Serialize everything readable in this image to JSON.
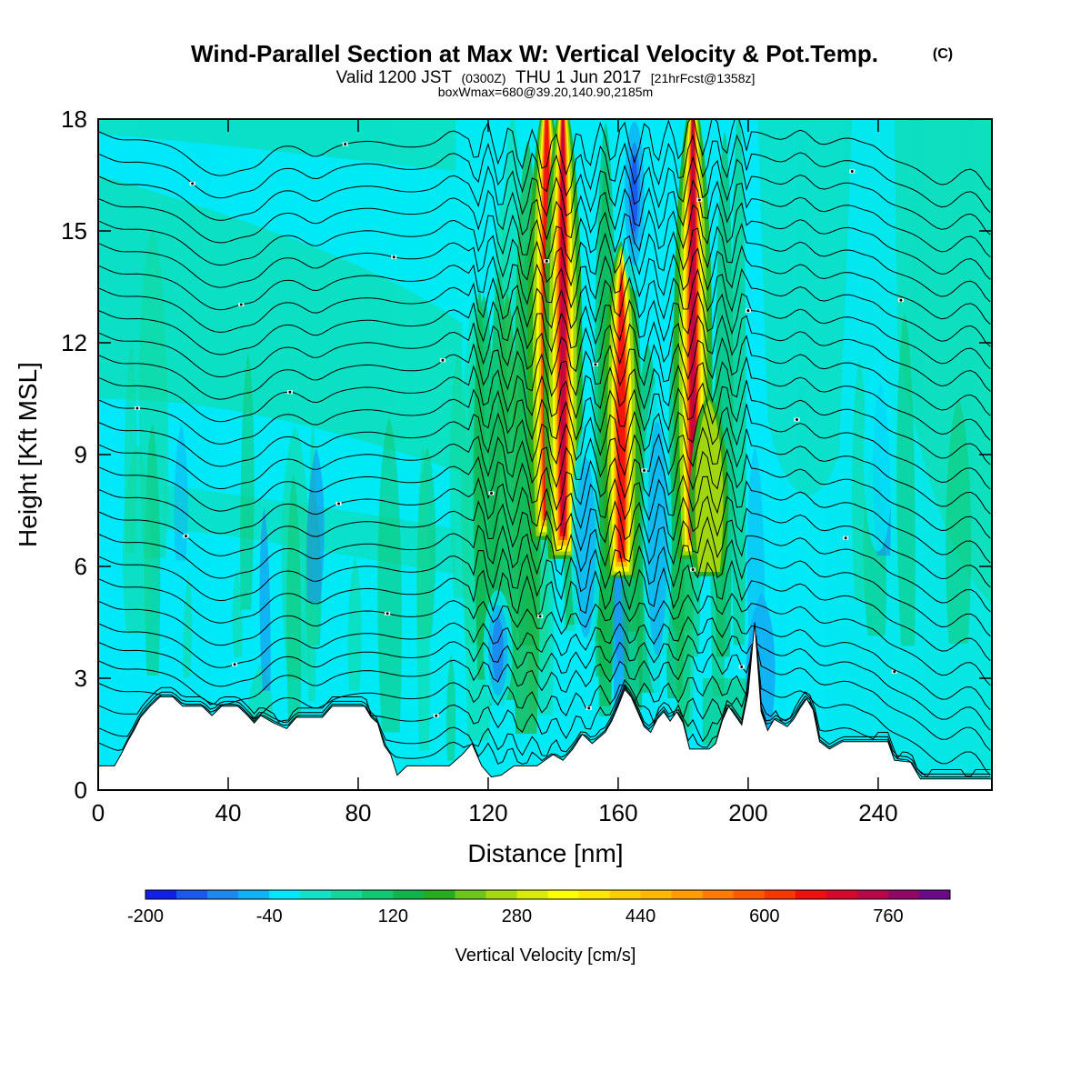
{
  "header": {
    "title": "Wind-Parallel Section at Max W: Vertical Velocity & Pot.Temp.",
    "copyright": "(C)",
    "valid_prefix": "Valid 1200 JST",
    "utc": "(0300Z)",
    "valid_date": "THU 1 Jun 2017",
    "forecast": "[21hrFcst@1358z]",
    "box_info": "boxWmax=680@39.20,140.90,2185m"
  },
  "chart_data": {
    "type": "heatmap",
    "xlabel": "Distance [nm]",
    "ylabel": "Height [Kft MSL]",
    "xlim": [
      0,
      275
    ],
    "ylim": [
      0,
      18
    ],
    "x_ticks": [
      0,
      40,
      80,
      120,
      160,
      200,
      240
    ],
    "y_ticks": [
      0,
      3,
      6,
      9,
      12,
      15,
      18
    ],
    "background_value": 0,
    "terrain_kft": [
      [
        0,
        0.65
      ],
      [
        5,
        0.65
      ],
      [
        7,
        0.95
      ],
      [
        9,
        1.3
      ],
      [
        11,
        1.6
      ],
      [
        13,
        1.95
      ],
      [
        16,
        2.25
      ],
      [
        19,
        2.5
      ],
      [
        23,
        2.5
      ],
      [
        26,
        2.25
      ],
      [
        32,
        2.25
      ],
      [
        35,
        2.0
      ],
      [
        38,
        2.25
      ],
      [
        43,
        2.25
      ],
      [
        46,
        2.0
      ],
      [
        48,
        1.8
      ],
      [
        50,
        2.0
      ],
      [
        54,
        1.8
      ],
      [
        58,
        1.65
      ],
      [
        61,
        1.95
      ],
      [
        69,
        1.95
      ],
      [
        72,
        2.25
      ],
      [
        82,
        2.25
      ],
      [
        84,
        1.95
      ],
      [
        86,
        1.8
      ],
      [
        88,
        1.2
      ],
      [
        90,
        0.95
      ],
      [
        92,
        0.4
      ],
      [
        95,
        0.65
      ],
      [
        100,
        0.65
      ],
      [
        104,
        0.65
      ],
      [
        108,
        0.65
      ],
      [
        112,
        0.95
      ],
      [
        115,
        1.25
      ],
      [
        118,
        0.65
      ],
      [
        121,
        0.35
      ],
      [
        124,
        0.4
      ],
      [
        128,
        0.65
      ],
      [
        135,
        0.65
      ],
      [
        140,
        0.95
      ],
      [
        143,
        0.8
      ],
      [
        146,
        1.1
      ],
      [
        149,
        1.5
      ],
      [
        152,
        1.25
      ],
      [
        156,
        1.55
      ],
      [
        158,
        1.85
      ],
      [
        160,
        2.25
      ],
      [
        162,
        2.7
      ],
      [
        164,
        2.5
      ],
      [
        166,
        2.1
      ],
      [
        168,
        1.7
      ],
      [
        170,
        1.55
      ],
      [
        172,
        1.9
      ],
      [
        174,
        2.1
      ],
      [
        176,
        1.85
      ],
      [
        178,
        2.1
      ],
      [
        180,
        1.8
      ],
      [
        182,
        1.1
      ],
      [
        188,
        1.1
      ],
      [
        190,
        1.25
      ],
      [
        192,
        1.85
      ],
      [
        194,
        2.25
      ],
      [
        198,
        1.75
      ],
      [
        200,
        2.6
      ],
      [
        202,
        4.5
      ],
      [
        204,
        2.1
      ],
      [
        206,
        1.6
      ],
      [
        208,
        1.9
      ],
      [
        212,
        1.7
      ],
      [
        214,
        1.9
      ],
      [
        216,
        2.2
      ],
      [
        218,
        2.45
      ],
      [
        220,
        2.15
      ],
      [
        222,
        1.3
      ],
      [
        225,
        1.1
      ],
      [
        229,
        1.3
      ],
      [
        243,
        1.3
      ],
      [
        245,
        0.8
      ],
      [
        250,
        0.75
      ],
      [
        253,
        0.3
      ],
      [
        275,
        0.3
      ]
    ],
    "updraft_cores": [
      {
        "x": 138,
        "y_bottom": 6.5,
        "y_top": 18,
        "w_max": 700
      },
      {
        "x": 143,
        "y_bottom": 6.0,
        "y_top": 18,
        "w_max": 760
      },
      {
        "x": 161,
        "y_bottom": 5.5,
        "y_top": 15.0,
        "w_max": 680
      },
      {
        "x": 183,
        "y_bottom": 6.0,
        "y_top": 18,
        "w_max": 760
      },
      {
        "x": 188,
        "y_bottom": 5.5,
        "y_top": 11.0,
        "w_max": 300
      }
    ],
    "downdraft_cores": [
      {
        "x": 123,
        "y_bottom": 2.5,
        "y_top": 5.0,
        "w_min": -120
      },
      {
        "x": 150,
        "y_bottom": 4.0,
        "y_top": 9.0,
        "w_min": -100
      },
      {
        "x": 165,
        "y_bottom": 14.0,
        "y_top": 18,
        "w_min": -160
      },
      {
        "x": 172,
        "y_bottom": 3.5,
        "y_top": 10.0,
        "w_min": -100
      },
      {
        "x": 240,
        "y_bottom": 7.0,
        "y_top": 11.0,
        "w_min": -60
      }
    ],
    "isentrope_base_heights_kft": [
      1.0,
      1.4,
      2.0,
      2.6,
      3.2,
      3.7,
      4.2,
      4.8,
      5.4,
      6.0,
      6.6,
      7.2,
      7.8,
      8.4,
      9.0,
      9.6,
      10.2,
      10.8,
      11.4,
      12.0,
      12.6,
      13.2,
      13.8,
      14.4,
      15.0,
      15.6,
      16.2,
      16.8,
      17.4
    ],
    "colorbar": {
      "label": "Vertical Velocity [cm/s]",
      "tick_labels": [
        "-200",
        "-40",
        "120",
        "280",
        "440",
        "600",
        "760"
      ],
      "levels": [
        -200,
        -160,
        -120,
        -80,
        -40,
        0,
        40,
        80,
        120,
        160,
        200,
        240,
        280,
        320,
        360,
        400,
        440,
        480,
        520,
        560,
        600,
        640,
        680,
        720,
        760,
        800,
        840
      ],
      "colors": [
        "#1020e8",
        "#1a58f0",
        "#1e88f0",
        "#10b4f4",
        "#00e8fa",
        "#12e2c8",
        "#14d89a",
        "#12c870",
        "#10b44a",
        "#28aa20",
        "#6cc41c",
        "#a6d810",
        "#d8ec08",
        "#ffff00",
        "#ffe800",
        "#ffd000",
        "#ffb800",
        "#ff9c00",
        "#ff7a00",
        "#ff5a00",
        "#f83800",
        "#f01010",
        "#d8082c",
        "#b8084a",
        "#900866",
        "#6a0a88"
      ]
    }
  }
}
